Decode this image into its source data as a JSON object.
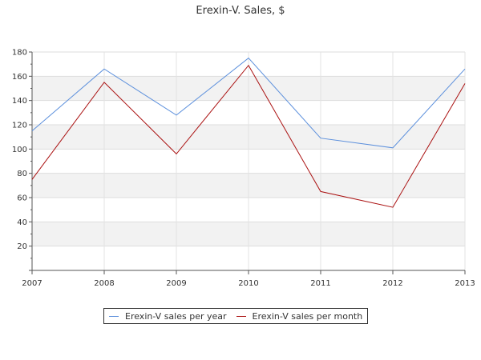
{
  "chart_data": {
    "type": "line",
    "title": "Erexin-V. Sales, $",
    "xlabel": "",
    "ylabel": "",
    "x": [
      "2007",
      "2008",
      "2009",
      "2010",
      "2011",
      "2012",
      "2013"
    ],
    "ylim": [
      0,
      180
    ],
    "yticks": [
      20,
      40,
      60,
      80,
      100,
      120,
      140,
      160,
      180
    ],
    "grid": true,
    "legend_position": "bottom",
    "series": [
      {
        "name": "Erexin-V sales per year",
        "color": "#5b8fdc",
        "values": [
          115,
          166,
          128,
          175,
          109,
          101,
          166
        ]
      },
      {
        "name": "Erexin-V sales per month",
        "color": "#aa1111",
        "values": [
          75,
          155,
          96,
          169,
          65,
          52,
          154
        ]
      }
    ]
  }
}
